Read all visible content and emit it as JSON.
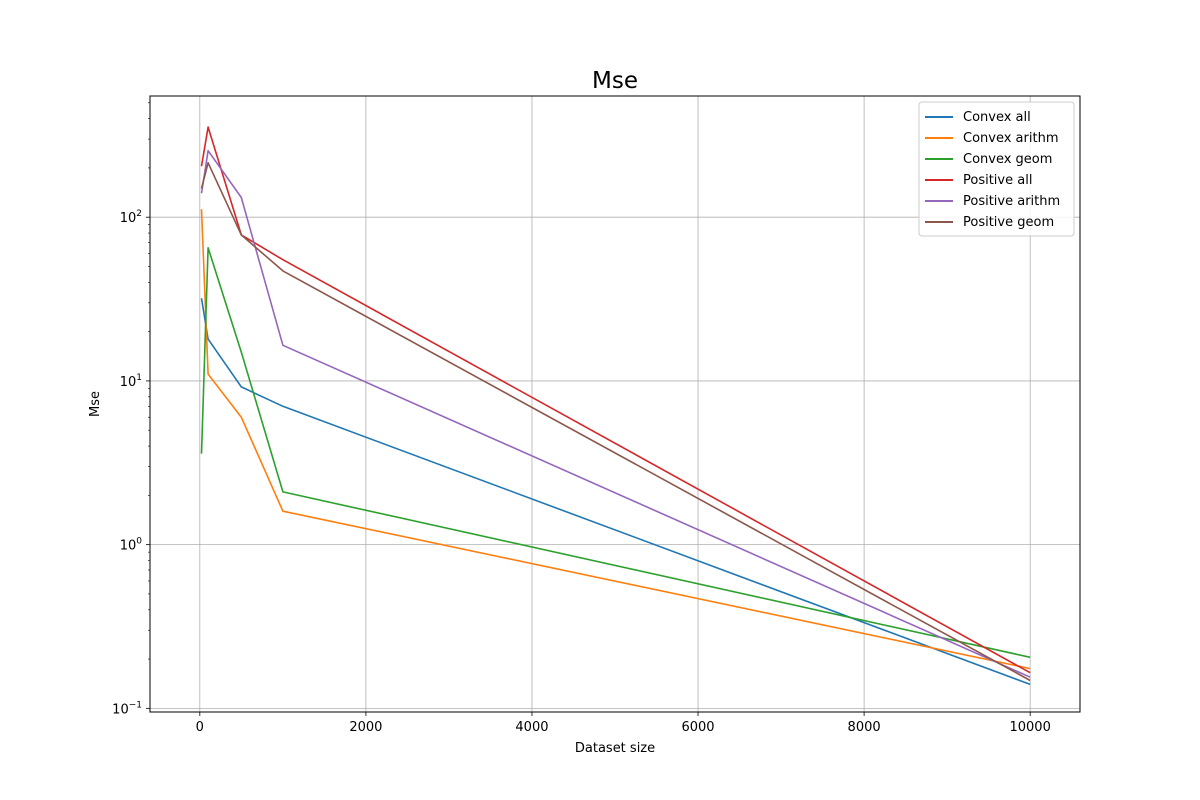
{
  "chart_data": {
    "type": "line",
    "title": "Mse",
    "xlabel": "Dataset size",
    "ylabel": "Mse",
    "yscale": "log",
    "xlim": [
      -600,
      10600
    ],
    "ylim": [
      0.095,
      550
    ],
    "grid": true,
    "legend_position": "top-right",
    "x_ticks": [
      0,
      2000,
      4000,
      6000,
      8000,
      10000
    ],
    "x_tick_labels": [
      "0",
      "2000",
      "4000",
      "6000",
      "8000",
      "10000"
    ],
    "y_ticks": [
      0.1,
      1,
      10,
      100
    ],
    "y_tick_labels": [
      {
        "base": "10",
        "exp": "−1"
      },
      {
        "base": "10",
        "exp": "0"
      },
      {
        "base": "10",
        "exp": "1"
      },
      {
        "base": "10",
        "exp": "2"
      }
    ],
    "x": [
      20,
      100,
      500,
      1000,
      10000
    ],
    "series": [
      {
        "name": "Convex all",
        "color": "#1f77b4",
        "values": [
          32,
          18,
          9.2,
          7.0,
          0.14
        ]
      },
      {
        "name": "Convex arithm",
        "color": "#ff7f0e",
        "values": [
          112,
          11,
          6.0,
          1.6,
          0.175
        ]
      },
      {
        "name": "Convex geom",
        "color": "#2ca02c",
        "values": [
          3.6,
          65,
          15,
          2.1,
          0.205
        ]
      },
      {
        "name": "Positive all",
        "color": "#d62728",
        "values": [
          205,
          355,
          78,
          55,
          0.165
        ]
      },
      {
        "name": "Positive arithm",
        "color": "#9467bd",
        "values": [
          140,
          255,
          132,
          16.5,
          0.155
        ]
      },
      {
        "name": "Positive geom",
        "color": "#8c564b",
        "values": [
          150,
          215,
          78,
          47,
          0.148
        ]
      }
    ]
  }
}
